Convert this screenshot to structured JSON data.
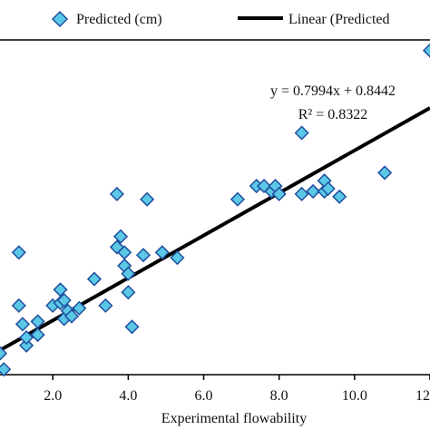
{
  "chart_data": {
    "type": "scatter",
    "xlabel": "Experimental flowability",
    "ylabel": "",
    "xlim": [
      0.6,
      12.0
    ],
    "ylim": [
      0.4,
      13.0
    ],
    "x_ticks": [
      2,
      4,
      6,
      8,
      10,
      12
    ],
    "x_tick_labels": [
      "2.0",
      "4.0",
      "6.0",
      "8.0",
      "10.0",
      "12"
    ],
    "legend_position": "top",
    "grid": false,
    "colors": {
      "marker_fill": "#5bc8e6",
      "marker_stroke": "#1f4f9f",
      "trendline": "#000000"
    },
    "series": [
      {
        "name": "Predicted (cm)",
        "kind": "scatter",
        "marker": "diamond",
        "x": [
          0.6,
          0.7,
          1.1,
          1.1,
          1.2,
          1.3,
          1.3,
          1.6,
          1.6,
          2.0,
          2.2,
          2.2,
          2.3,
          2.3,
          2.4,
          2.5,
          2.7,
          3.1,
          3.4,
          3.7,
          3.7,
          3.8,
          3.9,
          3.9,
          4.0,
          4.0,
          4.1,
          4.4,
          4.5,
          4.9,
          5.3,
          6.9,
          7.4,
          7.6,
          7.8,
          7.9,
          8.0,
          8.6,
          8.6,
          8.9,
          9.2,
          9.2,
          9.3,
          9.6,
          10.8,
          12.0
        ],
        "y": [
          1.2,
          0.6,
          5.0,
          3.0,
          2.3,
          1.5,
          1.8,
          2.4,
          1.9,
          3.0,
          3.6,
          3.1,
          3.2,
          2.5,
          2.8,
          2.6,
          2.9,
          4.0,
          3.0,
          7.2,
          5.2,
          5.6,
          4.5,
          5.0,
          4.2,
          3.5,
          2.2,
          4.9,
          7.0,
          5.0,
          4.8,
          7.0,
          7.5,
          7.5,
          7.3,
          7.5,
          7.2,
          7.2,
          9.5,
          7.3,
          7.3,
          7.7,
          7.4,
          7.1,
          8.0,
          12.6
        ]
      },
      {
        "name": "Linear (Predicted",
        "kind": "trendline",
        "slope": 0.7994,
        "intercept": 0.8442,
        "x": [
          0.6,
          12.0
        ],
        "y": [
          1.32,
          10.44
        ]
      }
    ],
    "annotations": [
      "y = 0.7994x + 0.8442",
      "R² = 0.8322"
    ]
  }
}
